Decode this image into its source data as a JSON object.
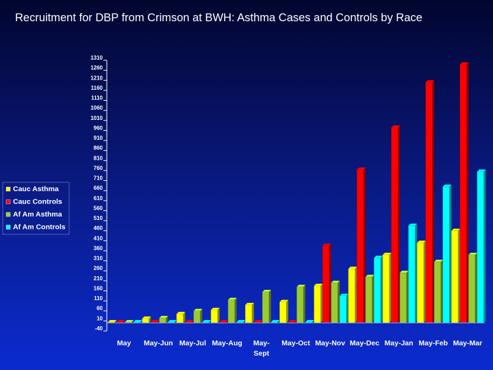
{
  "page": {
    "title": "Recruitment for DBP from Crimson at BWH: Asthma Cases and Controls by Race"
  },
  "chart_data": {
    "type": "bar",
    "title": "Recruitment for DBP from Crimson at BWH: Asthma Cases and Controls by Race",
    "categories": [
      "May",
      "May-Jun",
      "May-Jul",
      "May-Aug",
      "May-\nSept",
      "May-Oct",
      "May-Nov",
      "May-Dec",
      "May-Jan",
      "May-Feb",
      "May-Mar"
    ],
    "yticks": [
      -40,
      10,
      60,
      110,
      160,
      210,
      260,
      310,
      360,
      410,
      460,
      510,
      560,
      610,
      660,
      710,
      760,
      810,
      860,
      910,
      960,
      1010,
      1060,
      1110,
      1160,
      1210,
      1260,
      1310
    ],
    "ylim": [
      -40,
      1310
    ],
    "legend_position": "left",
    "series": [
      {
        "name": "Cauc Asthma",
        "color": "#ffff00",
        "values": [
          0,
          22,
          45,
          65,
          90,
          105,
          185,
          270,
          340,
          400,
          460
        ]
      },
      {
        "name": "Cauc Controls",
        "color": "#ff0000",
        "values": [
          0,
          0,
          0,
          0,
          0,
          0,
          385,
          765,
          975,
          1200,
          1290
        ]
      },
      {
        "name": "Af Am Asthma",
        "color": "#99cc33",
        "values": [
          0,
          25,
          60,
          115,
          155,
          180,
          200,
          230,
          250,
          305,
          340
        ]
      },
      {
        "name": "Af Am Controls",
        "color": "#00ffff",
        "values": [
          0,
          0,
          0,
          0,
          0,
          0,
          135,
          325,
          485,
          680,
          755
        ]
      }
    ]
  }
}
